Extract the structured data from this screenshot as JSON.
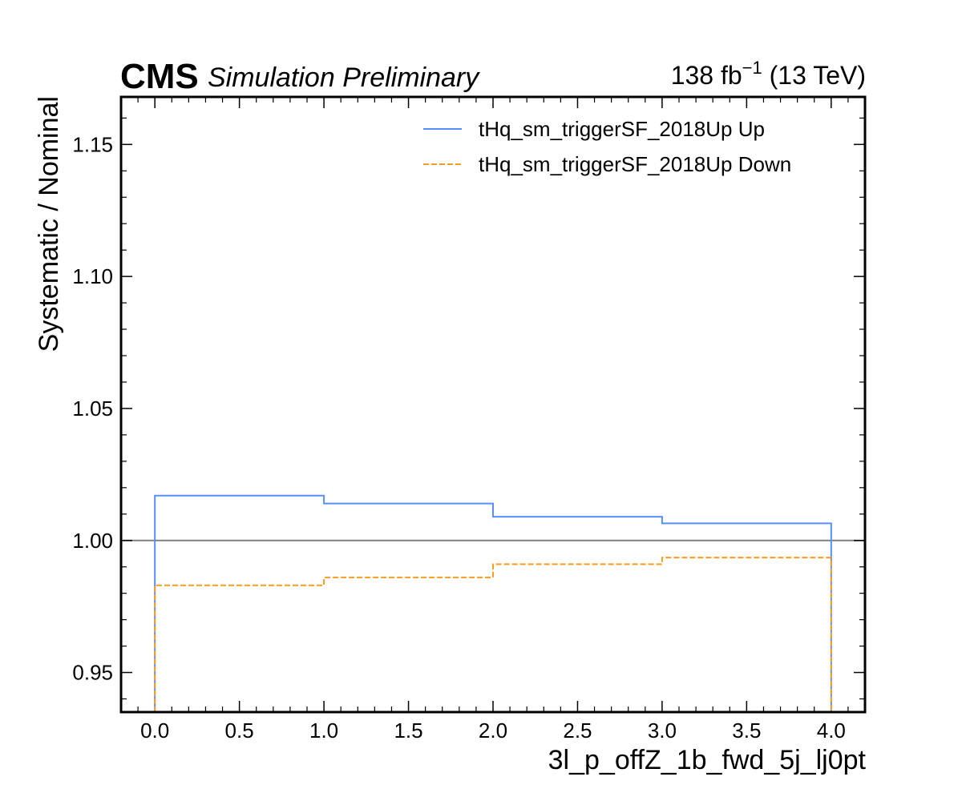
{
  "header": {
    "experiment": "CMS",
    "status": "Simulation Preliminary",
    "lumi": "138 fb",
    "lumi_exp": "−1",
    "energy": " (13 TeV)"
  },
  "chart_data": {
    "type": "line",
    "step": true,
    "xlabel": "3l_p_offZ_1b_fwd_5j_lj0pt",
    "ylabel": "Systematic / Nominal",
    "xlim": [
      -0.2,
      4.2
    ],
    "ylim": [
      0.935,
      1.168
    ],
    "x_ticks": [
      0.0,
      0.5,
      1.0,
      1.5,
      2.0,
      2.5,
      3.0,
      3.5,
      4.0
    ],
    "x_tick_labels": [
      "0.0",
      "0.5",
      "1.0",
      "1.5",
      "2.0",
      "2.5",
      "3.0",
      "3.5",
      "4.0"
    ],
    "y_ticks": [
      0.95,
      1.0,
      1.05,
      1.1,
      1.15
    ],
    "y_tick_labels": [
      "0.95",
      "1.00",
      "1.05",
      "1.10",
      "1.15"
    ],
    "reference_line": 1.0,
    "bin_edges": [
      0,
      1,
      2,
      3,
      4
    ],
    "series": [
      {
        "name": "tHq_sm_triggerSF_2018Up Up",
        "values": [
          1.017,
          1.014,
          1.009,
          1.0065
        ],
        "color": "#5790fc",
        "dash": "solid"
      },
      {
        "name": "tHq_sm_triggerSF_2018Up Down",
        "values": [
          0.983,
          0.986,
          0.991,
          0.9935
        ],
        "color": "#f89c20",
        "dash": "dashed"
      }
    ],
    "legend_position": "top-right",
    "grid": false
  }
}
